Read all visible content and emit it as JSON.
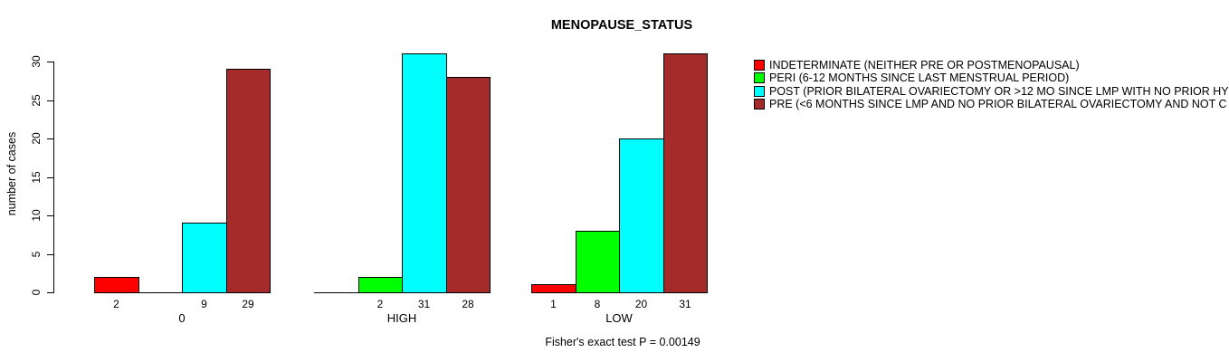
{
  "title": "MENOPAUSE_STATUS",
  "footer_note": "Fisher's exact test P = 0.00149",
  "chart_data": {
    "type": "bar",
    "title": "MENOPAUSE_STATUS",
    "xlabel": "",
    "ylabel": "number of cases",
    "ylim": [
      0,
      30
    ],
    "yticks": [
      0,
      5,
      10,
      15,
      20,
      25,
      30
    ],
    "grid": false,
    "legend_position": "right",
    "bar_value_labels": "values are printed under each nonzero bar",
    "categories": [
      "0",
      "HIGH",
      "LOW"
    ],
    "series": [
      {
        "name": "INDETERMINATE (NEITHER PRE OR POSTMENOPAUSAL)",
        "color": "#ff0000",
        "values": [
          2,
          0,
          1
        ]
      },
      {
        "name": "PERI (6-12 MONTHS SINCE LAST MENSTRUAL PERIOD)",
        "color": "#00ff00",
        "values": [
          0,
          2,
          8
        ]
      },
      {
        "name": "POST (PRIOR BILATERAL OVARIECTOMY OR >12 MO SINCE LMP WITH NO PRIOR HY",
        "color": "#00ffff",
        "values": [
          9,
          31,
          20
        ]
      },
      {
        "name": "PRE (<6 MONTHS SINCE LMP AND NO PRIOR BILATERAL OVARIECTOMY AND NOT C",
        "color": "#a52a2a",
        "values": [
          29,
          28,
          31
        ]
      }
    ]
  }
}
